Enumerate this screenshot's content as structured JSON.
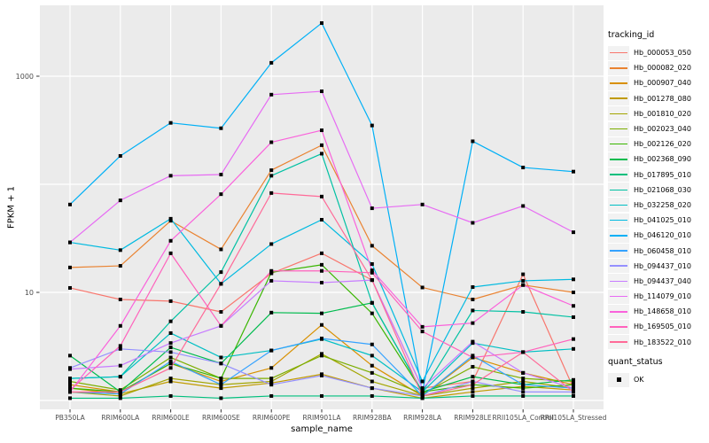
{
  "figure": {
    "y_axis_title": "FPKM + 1",
    "x_axis_title": "sample_name",
    "legend_title": "tracking_id",
    "quant_legend_title": "quant_status",
    "quant_legend_item": "OK"
  },
  "colors": {
    "panel_bg": "#EBEBEB",
    "grid": "#FFFFFF",
    "point": "#000000",
    "tick": "#333333",
    "tick_label": "#4D4D4D",
    "legend_key_bg": "#F2F2F2"
  },
  "chart_data": {
    "type": "line",
    "title": "",
    "xlabel": "sample_name",
    "ylabel": "FPKM + 1",
    "y_scale": "log10",
    "ylim": [
      1,
      3800
    ],
    "grid": true,
    "legend_position": "right",
    "legend_title": "tracking_id",
    "point_legend": {
      "title": "quant_status",
      "items": [
        "OK"
      ],
      "shape": "square"
    },
    "y_ticks": [
      {
        "value": 10,
        "label": "10"
      },
      {
        "value": 1000,
        "label": "1000"
      }
    ],
    "y_gridline_values": [
      1,
      10,
      100,
      1000
    ],
    "categories": [
      "PB350LA",
      "RRIM600LA",
      "RRIM600LE",
      "RRIM600SE",
      "RRIM600PE",
      "RRIM901LA",
      "RRIM928BA",
      "RRIM928LA",
      "RRIM928LE",
      "RRII105LA_Control",
      "RRII105LA_Stressed"
    ],
    "series": [
      {
        "name": "Hb_000053_050",
        "color": "#F8766D",
        "values": [
          11,
          8.6,
          8.3,
          6.6,
          15,
          23,
          13,
          1.3,
          1.5,
          14.7,
          1.3
        ]
      },
      {
        "name": "Hb_000082_020",
        "color": "#EA8331",
        "values": [
          17,
          17.6,
          46,
          25,
          135,
          230,
          27,
          11.1,
          8.6,
          11.7,
          10
        ]
      },
      {
        "name": "Hb_000907_040",
        "color": "#D89000",
        "values": [
          1.4,
          1.2,
          2.2,
          1.5,
          2.0,
          5.0,
          2.1,
          1.1,
          2.5,
          1.8,
          1.4
        ]
      },
      {
        "name": "Hb_001278_080",
        "color": "#C09B00",
        "values": [
          1.3,
          1.15,
          1.5,
          1.3,
          1.45,
          1.75,
          1.3,
          1.05,
          1.2,
          1.35,
          1.25
        ]
      },
      {
        "name": "Hb_001810_020",
        "color": "#A3A500",
        "values": [
          1.2,
          1.1,
          1.6,
          1.4,
          1.5,
          2.7,
          1.5,
          1.1,
          1.3,
          1.5,
          1.3
        ]
      },
      {
        "name": "Hb_002023_040",
        "color": "#7CAE00",
        "values": [
          1.5,
          1.25,
          2.5,
          1.6,
          1.6,
          2.6,
          1.8,
          1.15,
          2.05,
          1.6,
          1.5
        ]
      },
      {
        "name": "Hb_002126_020",
        "color": "#39B600",
        "values": [
          1.3,
          1.2,
          2.2,
          1.6,
          15.3,
          18,
          6.4,
          1.2,
          1.4,
          1.3,
          1.4
        ]
      },
      {
        "name": "Hb_002368_090",
        "color": "#00BB4E",
        "values": [
          2.6,
          1.2,
          3.1,
          2.2,
          6.5,
          6.4,
          8.0,
          1.2,
          1.66,
          1.4,
          1.55
        ]
      },
      {
        "name": "Hb_017895_010",
        "color": "#00BF7D",
        "values": [
          1.05,
          1.05,
          1.1,
          1.05,
          1.1,
          1.1,
          1.1,
          1.05,
          1.1,
          1.1,
          1.1
        ]
      },
      {
        "name": "Hb_021068_030",
        "color": "#00C1A3",
        "values": [
          1.6,
          1.66,
          5.4,
          15.4,
          120,
          192,
          8.0,
          1.2,
          6.8,
          6.6,
          5.9
        ]
      },
      {
        "name": "Hb_032258_020",
        "color": "#00BFC4",
        "values": [
          1.6,
          1.66,
          4.2,
          2.5,
          2.9,
          3.7,
          2.6,
          1.2,
          3.4,
          2.8,
          3.0
        ]
      },
      {
        "name": "Hb_041025_010",
        "color": "#00BAE0",
        "values": [
          29,
          24.6,
          48,
          12,
          28,
          47,
          18.3,
          1.5,
          11.2,
          12.8,
          13.2
        ]
      },
      {
        "name": "Hb_046120_010",
        "color": "#00B0F6",
        "values": [
          65,
          183,
          370,
          330,
          1330,
          3100,
          350,
          1.2,
          250,
          143,
          131
        ]
      },
      {
        "name": "Hb_060458_010",
        "color": "#35A2FF",
        "values": [
          1.2,
          1.15,
          2.3,
          1.4,
          2.9,
          3.75,
          3.3,
          1.1,
          2.6,
          1.4,
          1.3
        ]
      },
      {
        "name": "Hb_094437_010",
        "color": "#9590FF",
        "values": [
          2.0,
          3.0,
          2.8,
          2.2,
          1.4,
          1.7,
          1.3,
          1.1,
          1.5,
          1.2,
          1.2
        ]
      },
      {
        "name": "Hb_094437_040",
        "color": "#C77CFF",
        "values": [
          1.95,
          2.1,
          3.4,
          4.9,
          12.8,
          12.3,
          13,
          1.3,
          3.5,
          1.8,
          1.3
        ]
      },
      {
        "name": "Hb_114079_010",
        "color": "#E76BF3",
        "values": [
          29,
          71,
          120,
          123,
          675,
          725,
          60,
          65,
          44,
          63,
          36
        ]
      },
      {
        "name": "Hb_148658_010",
        "color": "#FA62DB",
        "values": [
          1.2,
          4.9,
          30,
          81,
          245,
          316,
          16,
          4.8,
          5.2,
          11.7,
          7.5
        ]
      },
      {
        "name": "Hb_169505_010",
        "color": "#FF62BC",
        "values": [
          1.25,
          3.2,
          23,
          4.9,
          15.8,
          15.8,
          15.2,
          4.35,
          2.5,
          2.8,
          3.7
        ]
      },
      {
        "name": "Hb_183522_010",
        "color": "#FF6A98",
        "values": [
          1.2,
          1.2,
          2.0,
          12,
          83,
          77,
          13,
          1.1,
          1.4,
          2.8,
          1.2
        ]
      }
    ]
  }
}
